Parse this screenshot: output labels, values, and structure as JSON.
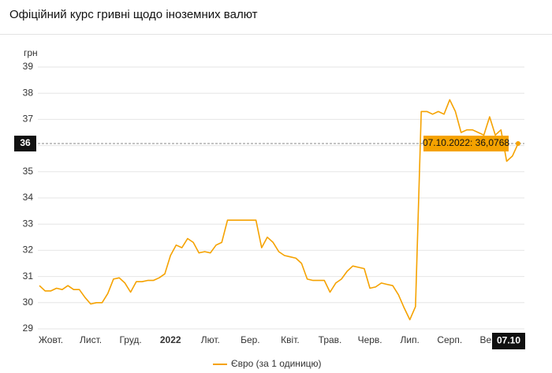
{
  "header": {
    "title": "Офіційний курс гривні щодо іноземних валют"
  },
  "chart_data": {
    "type": "line",
    "ylabel": "грн",
    "categories": [
      null,
      null,
      "Жовт.",
      null,
      null,
      null,
      null,
      null,
      null,
      "Лист.",
      null,
      null,
      null,
      null,
      null,
      null,
      "Груд.",
      null,
      null,
      null,
      null,
      null,
      null,
      "2022",
      null,
      null,
      null,
      null,
      null,
      null,
      "Лют.",
      null,
      null,
      null,
      null,
      null,
      null,
      "Бер.",
      null,
      null,
      null,
      null,
      null,
      null,
      "Квіт.",
      null,
      null,
      null,
      null,
      null,
      null,
      "Трав.",
      null,
      null,
      null,
      null,
      null,
      null,
      "Черв.",
      null,
      null,
      null,
      null,
      null,
      null,
      "Лип.",
      null,
      null,
      null,
      null,
      null,
      null,
      "Серп.",
      null,
      null,
      null,
      null,
      null,
      null,
      "Вер.",
      null,
      null,
      null,
      null,
      null
    ],
    "series": [
      {
        "name": "Євро (за 1 одиницю)",
        "color": "#f5a200",
        "values": [
          30.65,
          30.45,
          30.45,
          30.55,
          30.5,
          30.65,
          30.5,
          30.5,
          30.2,
          29.95,
          30.0,
          30.0,
          30.35,
          30.9,
          30.95,
          30.75,
          30.4,
          30.8,
          30.8,
          30.85,
          30.85,
          30.95,
          31.1,
          31.8,
          32.2,
          32.1,
          32.45,
          32.3,
          31.9,
          31.95,
          31.9,
          32.2,
          32.3,
          33.15,
          33.15,
          33.15,
          33.15,
          33.15,
          33.15,
          32.1,
          32.5,
          32.3,
          31.95,
          31.8,
          31.75,
          31.7,
          31.5,
          30.9,
          30.85,
          30.85,
          30.85,
          30.4,
          30.75,
          30.9,
          31.2,
          31.4,
          31.35,
          31.3,
          30.55,
          30.6,
          30.75,
          30.7,
          30.65,
          30.3,
          29.8,
          29.35,
          29.85,
          37.3,
          37.3,
          37.2,
          37.3,
          37.2,
          37.75,
          37.3,
          36.5,
          36.6,
          36.6,
          36.5,
          36.4,
          37.1,
          36.4,
          36.6,
          35.4,
          35.6,
          36.0768
        ]
      }
    ],
    "ylim": [
      29,
      39
    ],
    "yticks": [
      29,
      30,
      31,
      32,
      33,
      34,
      35,
      36,
      37,
      38,
      39
    ],
    "grid": true,
    "crosshair": {
      "y_label": "36",
      "x_label": "07.10",
      "tooltip": "07.10.2022: 36,0768"
    }
  }
}
